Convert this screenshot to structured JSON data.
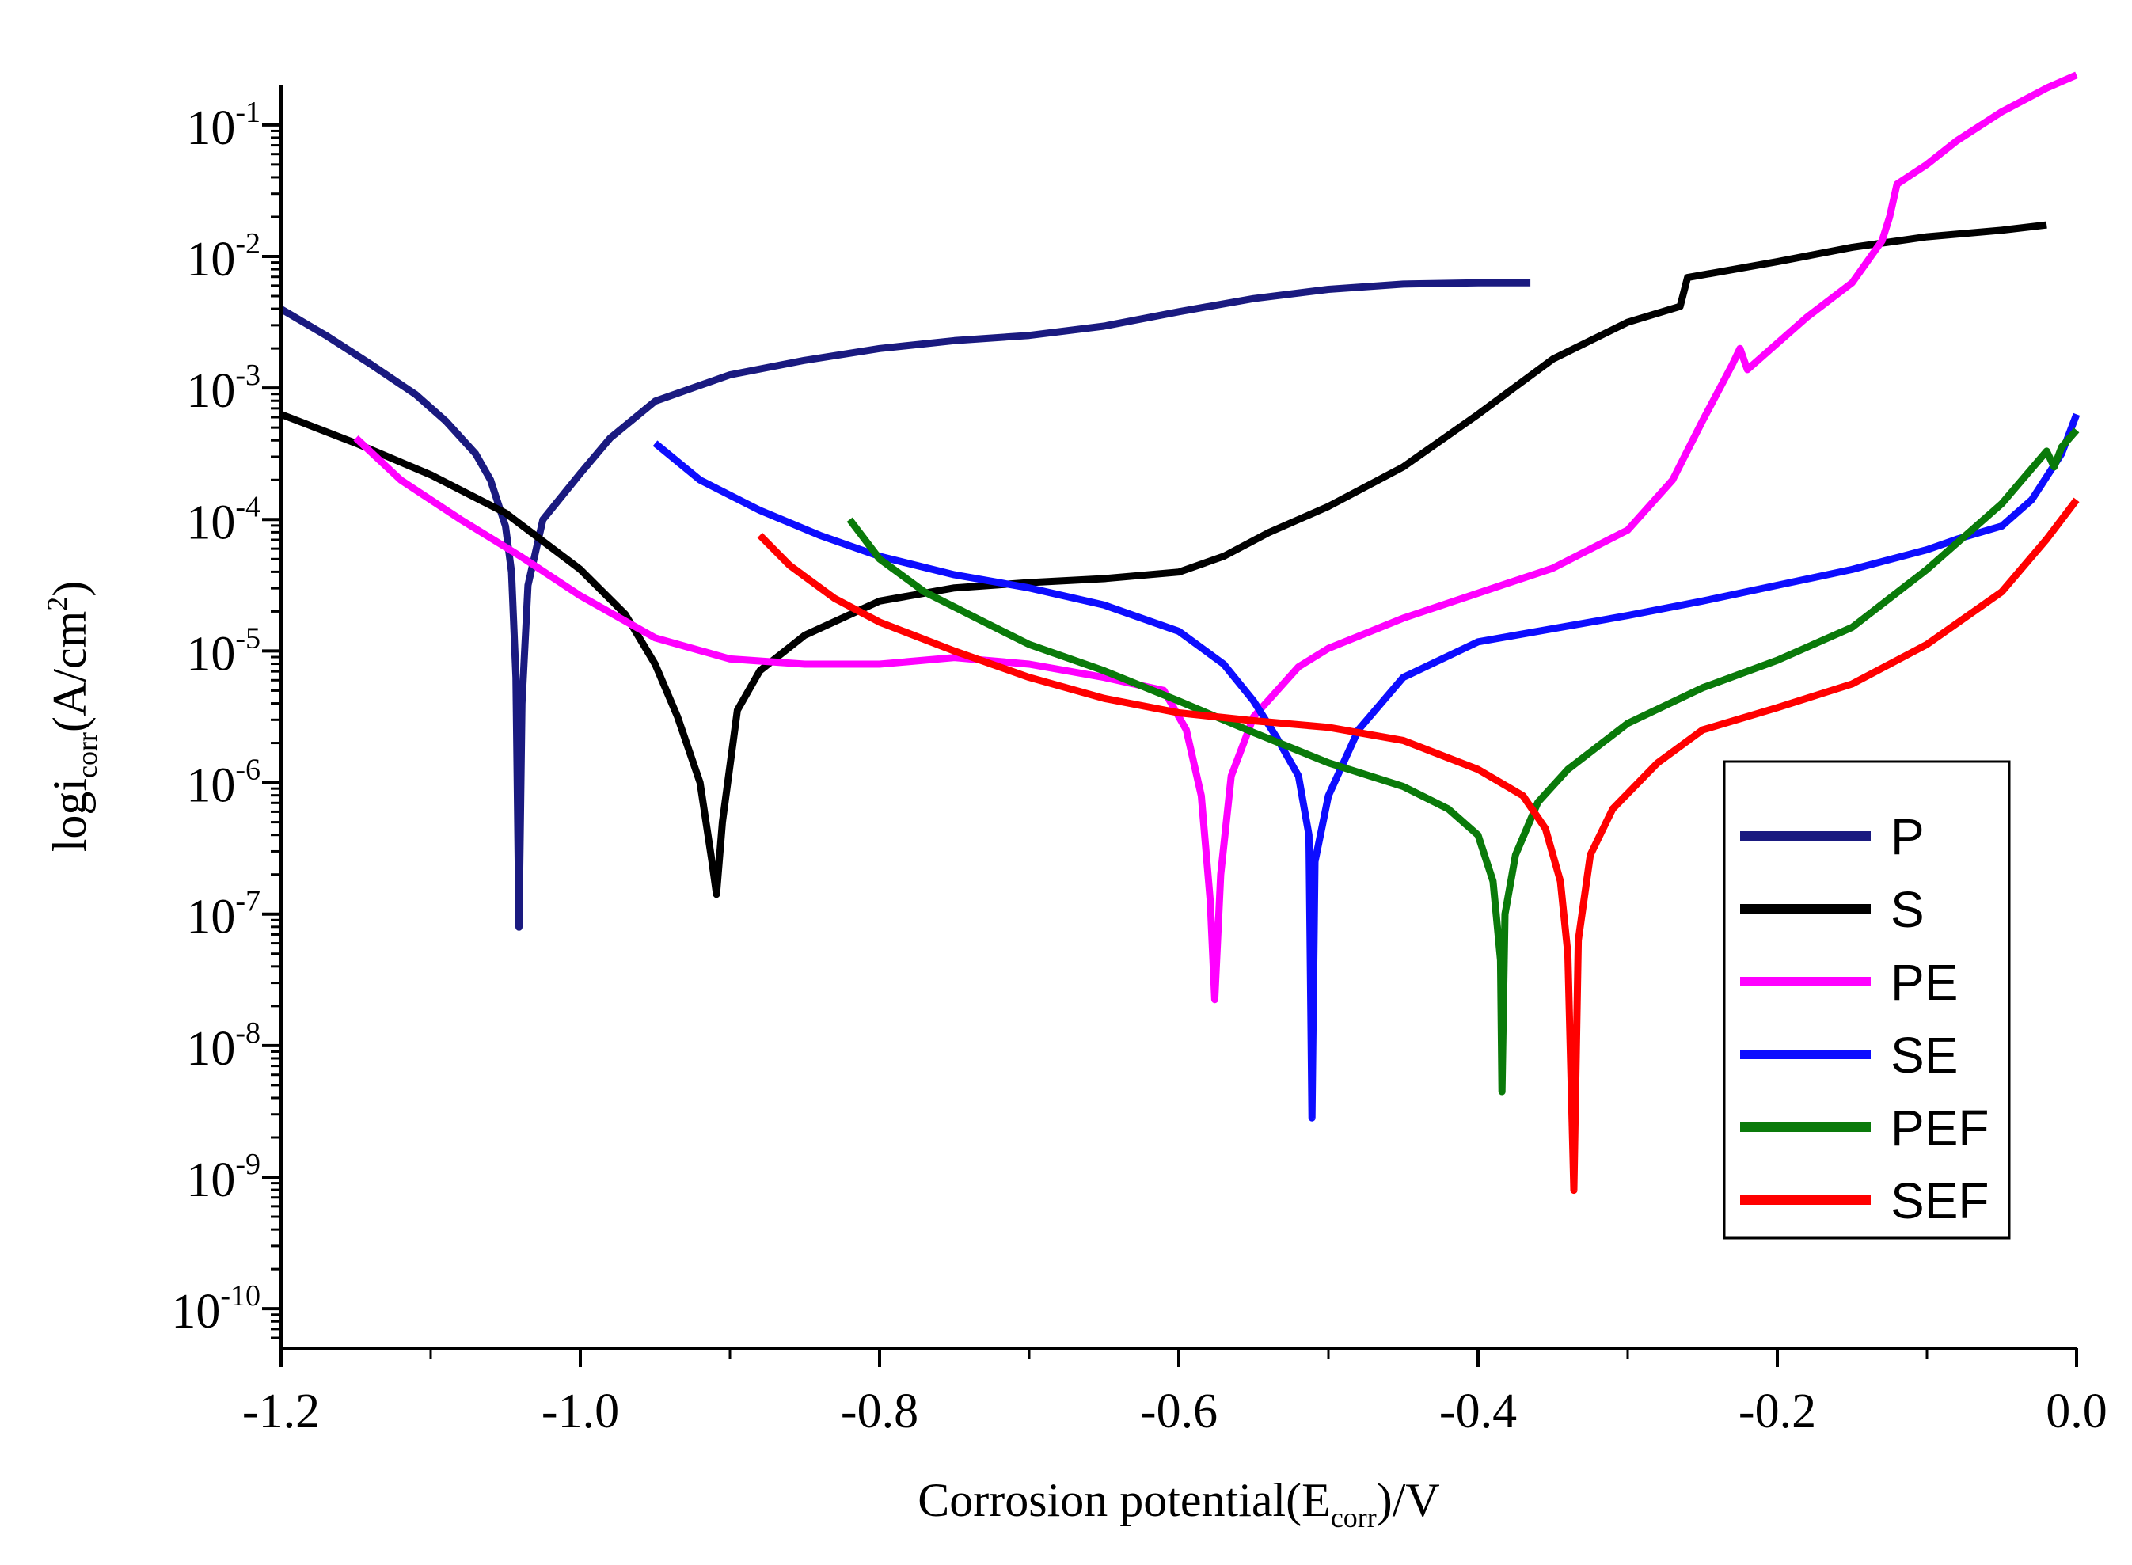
{
  "chart_data": {
    "type": "line",
    "title": "",
    "xlabel": {
      "prefix": "Corrosion potential(E",
      "subscript": "corr",
      "suffix": ")/V"
    },
    "ylabel": {
      "prefix": "logi",
      "subscript": "corr",
      "middle": "(A/cm",
      "superscript": "2",
      "suffix": ")"
    },
    "xlim": [
      -1.2,
      0.0
    ],
    "ylim_log10": [
      -10.3,
      -0.7
    ],
    "x_ticks": [
      {
        "value": -1.2,
        "label": "-1.2"
      },
      {
        "value": -1.0,
        "label": "-1.0"
      },
      {
        "value": -0.8,
        "label": "-0.8"
      },
      {
        "value": -0.6,
        "label": "-0.6"
      },
      {
        "value": -0.4,
        "label": "-0.4"
      },
      {
        "value": -0.2,
        "label": "-0.2"
      },
      {
        "value": 0.0,
        "label": "0.0"
      }
    ],
    "y_ticks": [
      {
        "exp": -1,
        "base": "10",
        "sup": "-1"
      },
      {
        "exp": -2,
        "base": "10",
        "sup": "-2"
      },
      {
        "exp": -3,
        "base": "10",
        "sup": "-3"
      },
      {
        "exp": -4,
        "base": "10",
        "sup": "-4"
      },
      {
        "exp": -5,
        "base": "10",
        "sup": "-5"
      },
      {
        "exp": -6,
        "base": "10",
        "sup": "-6"
      },
      {
        "exp": -7,
        "base": "10",
        "sup": "-7"
      },
      {
        "exp": -8,
        "base": "10",
        "sup": "-8"
      },
      {
        "exp": -9,
        "base": "10",
        "sup": "-9"
      },
      {
        "exp": -10,
        "base": "10",
        "sup": "-10"
      }
    ],
    "legend_position": "right",
    "series": [
      {
        "name": "P",
        "color": "#1a1a80",
        "points": [
          [
            -1.2,
            -2.4
          ],
          [
            -1.17,
            -2.6
          ],
          [
            -1.14,
            -2.82
          ],
          [
            -1.11,
            -3.05
          ],
          [
            -1.09,
            -3.25
          ],
          [
            -1.07,
            -3.5
          ],
          [
            -1.06,
            -3.7
          ],
          [
            -1.05,
            -4.05
          ],
          [
            -1.046,
            -4.4
          ],
          [
            -1.043,
            -5.2
          ],
          [
            -1.041,
            -7.1
          ],
          [
            -1.039,
            -5.4
          ],
          [
            -1.035,
            -4.5
          ],
          [
            -1.025,
            -4.0
          ],
          [
            -1.0,
            -3.65
          ],
          [
            -0.98,
            -3.38
          ],
          [
            -0.95,
            -3.1
          ],
          [
            -0.9,
            -2.9
          ],
          [
            -0.85,
            -2.79
          ],
          [
            -0.8,
            -2.7
          ],
          [
            -0.75,
            -2.64
          ],
          [
            -0.7,
            -2.6
          ],
          [
            -0.65,
            -2.53
          ],
          [
            -0.6,
            -2.42
          ],
          [
            -0.55,
            -2.32
          ],
          [
            -0.5,
            -2.25
          ],
          [
            -0.45,
            -2.21
          ],
          [
            -0.4,
            -2.2
          ],
          [
            -0.365,
            -2.2
          ]
        ]
      },
      {
        "name": "S",
        "color": "#000000",
        "points": [
          [
            -1.2,
            -3.2
          ],
          [
            -1.15,
            -3.42
          ],
          [
            -1.1,
            -3.66
          ],
          [
            -1.05,
            -3.95
          ],
          [
            -1.0,
            -4.38
          ],
          [
            -0.97,
            -4.72
          ],
          [
            -0.95,
            -5.1
          ],
          [
            -0.935,
            -5.5
          ],
          [
            -0.92,
            -6.0
          ],
          [
            -0.912,
            -6.6
          ],
          [
            -0.909,
            -6.85
          ],
          [
            -0.905,
            -6.3
          ],
          [
            -0.895,
            -5.45
          ],
          [
            -0.88,
            -5.15
          ],
          [
            -0.85,
            -4.88
          ],
          [
            -0.8,
            -4.62
          ],
          [
            -0.75,
            -4.52
          ],
          [
            -0.7,
            -4.48
          ],
          [
            -0.65,
            -4.45
          ],
          [
            -0.6,
            -4.4
          ],
          [
            -0.57,
            -4.28
          ],
          [
            -0.54,
            -4.1
          ],
          [
            -0.5,
            -3.9
          ],
          [
            -0.45,
            -3.6
          ],
          [
            -0.4,
            -3.2
          ],
          [
            -0.35,
            -2.78
          ],
          [
            -0.3,
            -2.5
          ],
          [
            -0.265,
            -2.38
          ],
          [
            -0.26,
            -2.16
          ],
          [
            -0.2,
            -2.04
          ],
          [
            -0.15,
            -1.93
          ],
          [
            -0.1,
            -1.85
          ],
          [
            -0.05,
            -1.8
          ],
          [
            -0.02,
            -1.76
          ]
        ]
      },
      {
        "name": "PE",
        "color": "#ff00ff",
        "points": [
          [
            -1.15,
            -3.38
          ],
          [
            -1.12,
            -3.7
          ],
          [
            -1.08,
            -4.0
          ],
          [
            -1.04,
            -4.28
          ],
          [
            -1.0,
            -4.58
          ],
          [
            -0.95,
            -4.9
          ],
          [
            -0.9,
            -5.06
          ],
          [
            -0.85,
            -5.1
          ],
          [
            -0.8,
            -5.1
          ],
          [
            -0.75,
            -5.05
          ],
          [
            -0.7,
            -5.1
          ],
          [
            -0.65,
            -5.2
          ],
          [
            -0.61,
            -5.3
          ],
          [
            -0.595,
            -5.6
          ],
          [
            -0.585,
            -6.1
          ],
          [
            -0.579,
            -6.9
          ],
          [
            -0.576,
            -7.65
          ],
          [
            -0.572,
            -6.7
          ],
          [
            -0.565,
            -5.95
          ],
          [
            -0.55,
            -5.5
          ],
          [
            -0.52,
            -5.12
          ],
          [
            -0.5,
            -4.98
          ],
          [
            -0.45,
            -4.75
          ],
          [
            -0.4,
            -4.56
          ],
          [
            -0.35,
            -4.37
          ],
          [
            -0.3,
            -4.08
          ],
          [
            -0.27,
            -3.7
          ],
          [
            -0.25,
            -3.25
          ],
          [
            -0.23,
            -2.82
          ],
          [
            -0.225,
            -2.7
          ],
          [
            -0.22,
            -2.86
          ],
          [
            -0.2,
            -2.66
          ],
          [
            -0.18,
            -2.46
          ],
          [
            -0.15,
            -2.2
          ],
          [
            -0.13,
            -1.88
          ],
          [
            -0.125,
            -1.7
          ],
          [
            -0.12,
            -1.45
          ],
          [
            -0.1,
            -1.3
          ],
          [
            -0.08,
            -1.12
          ],
          [
            -0.05,
            -0.9
          ],
          [
            -0.02,
            -0.72
          ],
          [
            0.0,
            -0.62
          ]
        ]
      },
      {
        "name": "SE",
        "color": "#0d0dff",
        "points": [
          [
            -0.95,
            -3.42
          ],
          [
            -0.92,
            -3.7
          ],
          [
            -0.88,
            -3.93
          ],
          [
            -0.84,
            -4.12
          ],
          [
            -0.8,
            -4.28
          ],
          [
            -0.75,
            -4.42
          ],
          [
            -0.7,
            -4.52
          ],
          [
            -0.65,
            -4.65
          ],
          [
            -0.6,
            -4.85
          ],
          [
            -0.57,
            -5.1
          ],
          [
            -0.55,
            -5.38
          ],
          [
            -0.535,
            -5.65
          ],
          [
            -0.52,
            -5.95
          ],
          [
            -0.513,
            -6.4
          ],
          [
            -0.511,
            -8.55
          ],
          [
            -0.509,
            -6.6
          ],
          [
            -0.5,
            -6.1
          ],
          [
            -0.48,
            -5.6
          ],
          [
            -0.45,
            -5.2
          ],
          [
            -0.4,
            -4.93
          ],
          [
            -0.35,
            -4.83
          ],
          [
            -0.3,
            -4.73
          ],
          [
            -0.25,
            -4.62
          ],
          [
            -0.2,
            -4.5
          ],
          [
            -0.15,
            -4.38
          ],
          [
            -0.1,
            -4.23
          ],
          [
            -0.08,
            -4.15
          ],
          [
            -0.05,
            -4.05
          ],
          [
            -0.03,
            -3.85
          ],
          [
            -0.01,
            -3.5
          ],
          [
            0.0,
            -3.2
          ]
        ]
      },
      {
        "name": "PEF",
        "color": "#0a7a0a",
        "points": [
          [
            -0.82,
            -4.0
          ],
          [
            -0.8,
            -4.3
          ],
          [
            -0.77,
            -4.55
          ],
          [
            -0.73,
            -4.78
          ],
          [
            -0.7,
            -4.95
          ],
          [
            -0.65,
            -5.15
          ],
          [
            -0.6,
            -5.38
          ],
          [
            -0.55,
            -5.62
          ],
          [
            -0.5,
            -5.85
          ],
          [
            -0.45,
            -6.03
          ],
          [
            -0.42,
            -6.2
          ],
          [
            -0.4,
            -6.4
          ],
          [
            -0.39,
            -6.75
          ],
          [
            -0.385,
            -7.35
          ],
          [
            -0.384,
            -8.35
          ],
          [
            -0.382,
            -7.0
          ],
          [
            -0.375,
            -6.55
          ],
          [
            -0.36,
            -6.15
          ],
          [
            -0.34,
            -5.9
          ],
          [
            -0.3,
            -5.55
          ],
          [
            -0.25,
            -5.28
          ],
          [
            -0.2,
            -5.07
          ],
          [
            -0.15,
            -4.82
          ],
          [
            -0.1,
            -4.38
          ],
          [
            -0.05,
            -3.88
          ],
          [
            -0.02,
            -3.48
          ],
          [
            -0.015,
            -3.6
          ],
          [
            -0.01,
            -3.45
          ],
          [
            0.0,
            -3.32
          ]
        ]
      },
      {
        "name": "SEF",
        "color": "#ff0000",
        "points": [
          [
            -0.88,
            -4.12
          ],
          [
            -0.86,
            -4.35
          ],
          [
            -0.83,
            -4.6
          ],
          [
            -0.8,
            -4.78
          ],
          [
            -0.75,
            -5.0
          ],
          [
            -0.7,
            -5.2
          ],
          [
            -0.65,
            -5.36
          ],
          [
            -0.6,
            -5.47
          ],
          [
            -0.55,
            -5.53
          ],
          [
            -0.5,
            -5.58
          ],
          [
            -0.45,
            -5.68
          ],
          [
            -0.4,
            -5.9
          ],
          [
            -0.37,
            -6.1
          ],
          [
            -0.355,
            -6.35
          ],
          [
            -0.345,
            -6.75
          ],
          [
            -0.34,
            -7.3
          ],
          [
            -0.336,
            -9.1
          ],
          [
            -0.333,
            -7.2
          ],
          [
            -0.325,
            -6.55
          ],
          [
            -0.31,
            -6.2
          ],
          [
            -0.28,
            -5.85
          ],
          [
            -0.25,
            -5.6
          ],
          [
            -0.2,
            -5.43
          ],
          [
            -0.15,
            -5.25
          ],
          [
            -0.1,
            -4.95
          ],
          [
            -0.05,
            -4.55
          ],
          [
            -0.02,
            -4.15
          ],
          [
            0.0,
            -3.85
          ]
        ]
      }
    ]
  }
}
